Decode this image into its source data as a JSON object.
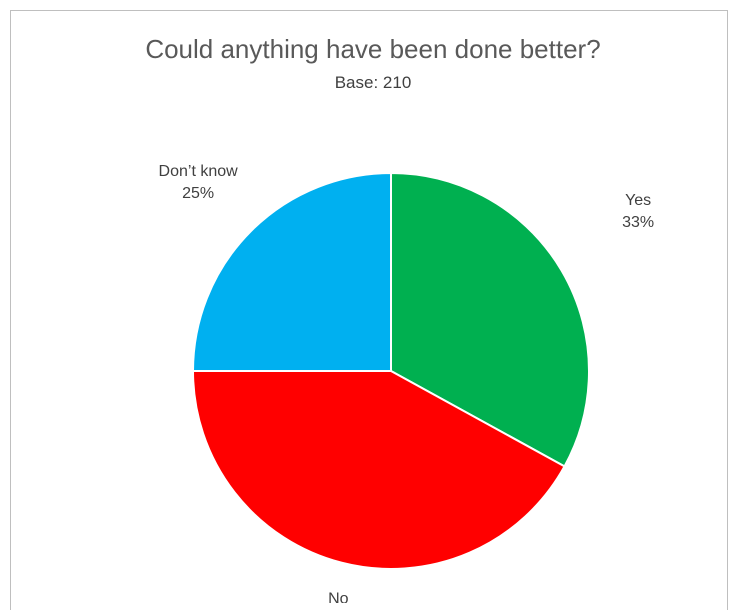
{
  "chart_data": {
    "type": "pie",
    "title": "Could anything have been done better?",
    "subtitle": "Base: 210",
    "start_angle_deg": 0,
    "slices": [
      {
        "label": "Yes",
        "value": 33,
        "value_label": "33%",
        "color": "#00b050"
      },
      {
        "label": "No",
        "value": 42,
        "value_label": "42%",
        "color": "#ff0000"
      },
      {
        "label": "Don’t know",
        "value": 25,
        "value_label": "25%",
        "color": "#00b0f0"
      }
    ],
    "legend": "none",
    "data_labels": "outside"
  }
}
